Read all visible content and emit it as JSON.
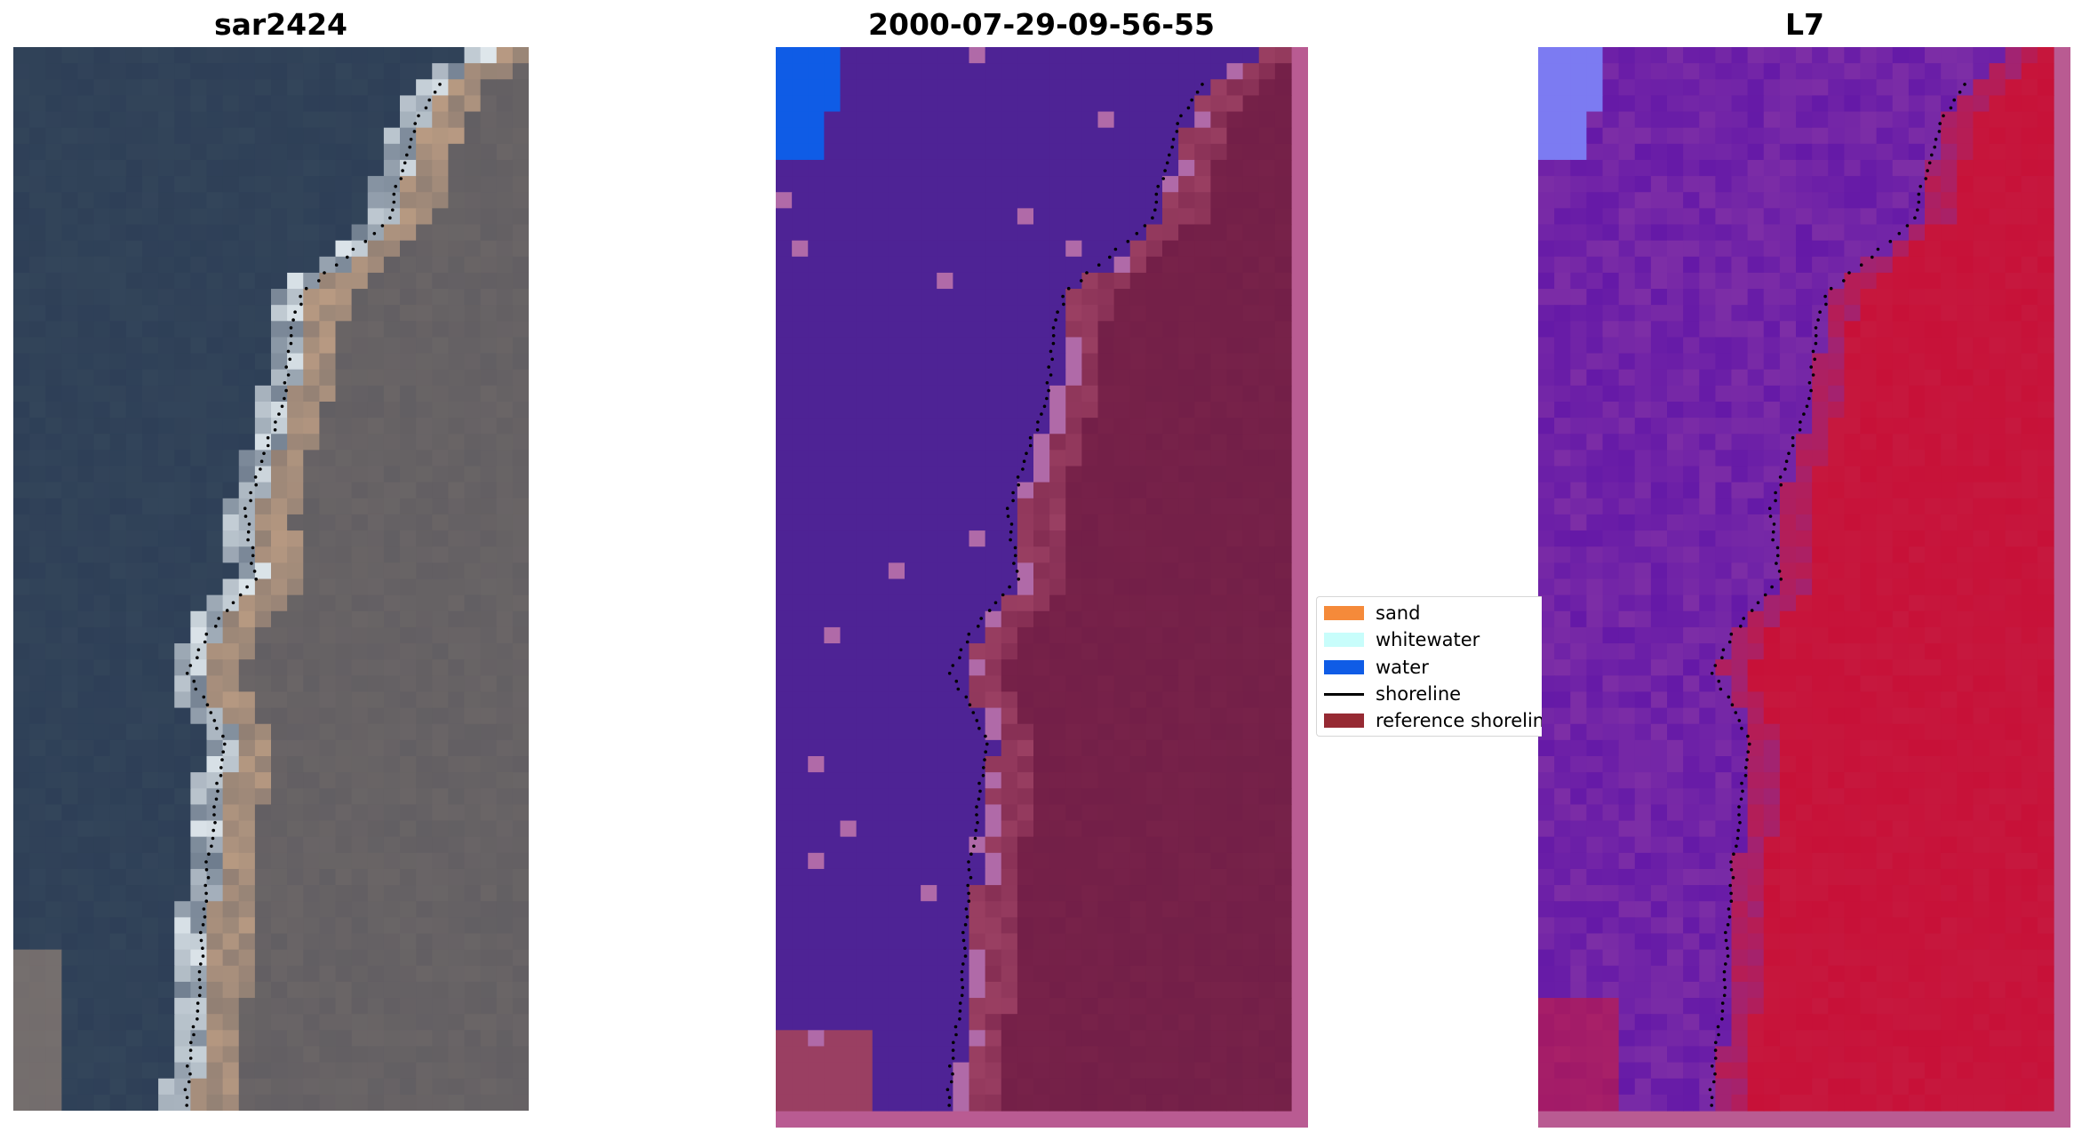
{
  "panels": [
    {
      "title": "sar2424",
      "kind": "rgb"
    },
    {
      "title": "2000-07-29-09-56-55",
      "kind": "classified"
    },
    {
      "title": "L7",
      "kind": "index"
    }
  ],
  "legend": {
    "items": [
      {
        "label": "sand",
        "color": "#f58a3a",
        "type": "patch"
      },
      {
        "label": "whitewater",
        "color": "#c8fdfb",
        "type": "patch"
      },
      {
        "label": "water",
        "color": "#0f5ce6",
        "type": "patch"
      },
      {
        "label": "shoreline",
        "color": "#000000",
        "type": "line"
      },
      {
        "label": "reference shoreline",
        "color": "#962a33",
        "type": "patch"
      }
    ]
  },
  "colors": {
    "rgb_sea": "#2e3f57",
    "rgb_land": "#6a6566",
    "rgb_whitewater": "#e8f0f4",
    "rgb_sand": "#b89a82",
    "class_water_deep": "#4e2395",
    "class_water_bright": "#0f5ce6",
    "class_land": "#772249",
    "class_land_light": "#9a3f62",
    "class_border": "#b95b92",
    "class_whitewater_mix": "#b06aa8",
    "index_sea": "#7d2ea6",
    "index_sea_dark": "#5a10a8",
    "index_land": "#c6183e",
    "index_blue": "#7c7bf2",
    "shoreline": "#000000"
  }
}
